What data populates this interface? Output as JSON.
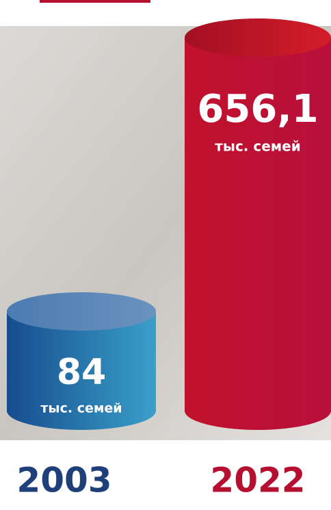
{
  "chart_data": {
    "type": "cylinder",
    "categories": [
      "2003",
      "2022"
    ],
    "values": [
      84,
      656.1
    ],
    "value_labels": [
      "84",
      "656,1"
    ],
    "unit": "тыс. семей",
    "colors": [
      "#1d5a9c",
      "#b5102f"
    ]
  }
}
